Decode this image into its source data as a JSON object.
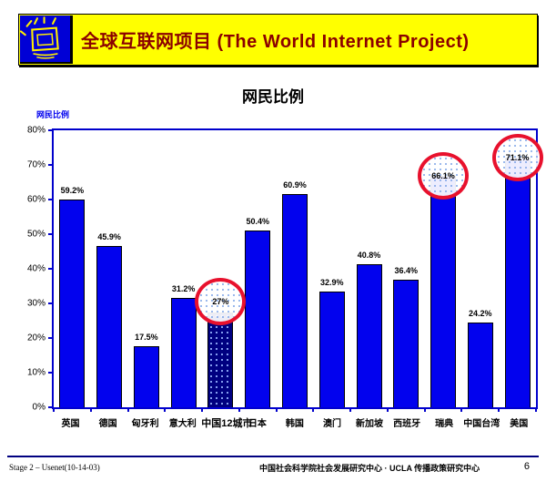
{
  "header": {
    "title": "全球互联网项目 (The World Internet Project)",
    "logo_icon": "sketched-monitor-with-rays",
    "banner_bg": "#ffff00",
    "title_color": "#8b0000"
  },
  "chart_title": "网民比例",
  "chart_data": {
    "type": "bar",
    "title": "网民比例",
    "ylabel": "网民比例",
    "xlabel": "",
    "ylim": [
      0,
      80
    ],
    "yticks": [
      "0%",
      "10%",
      "20%",
      "30%",
      "40%",
      "50%",
      "60%",
      "70%",
      "80%"
    ],
    "grid": false,
    "legend": "none",
    "categories": [
      "英国",
      "德国",
      "匈牙利",
      "意大利",
      "中国12城市",
      "日本",
      "韩国",
      "澳门",
      "新加坡",
      "西班牙",
      "瑞典",
      "中国台湾",
      "美国"
    ],
    "values": [
      59.2,
      45.9,
      17.5,
      31.2,
      27,
      50.4,
      60.9,
      32.9,
      40.8,
      36.4,
      66.1,
      24.2,
      71.1
    ],
    "value_labels": [
      "59.2%",
      "45.9%",
      "17.5%",
      "31.2%",
      "27%",
      "50.4%",
      "60.9%",
      "32.9%",
      "40.8%",
      "36.4%",
      "66.1%",
      "24.2%",
      "71.1%"
    ],
    "circled_indices": [
      4,
      10,
      12
    ],
    "special_bar_index": 4,
    "bar_color": "#0202ee",
    "special_bar_color": "#000080",
    "circle_color": "#e8112d",
    "axis_color": "#0000cc"
  },
  "footer": {
    "left": "Stage 2 – Usenet(10-14-03)",
    "right": "中国社会科学院社会发展研究中心 · UCLA 传播政策研究中心",
    "page_number": "6"
  }
}
